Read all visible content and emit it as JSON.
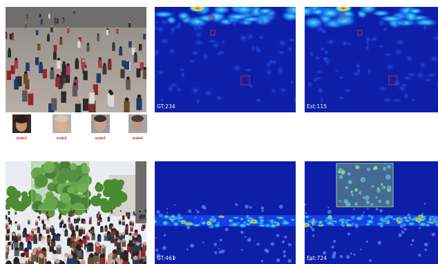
{
  "row1": {
    "gt_label": "GT:234",
    "est_label": "Est:115",
    "scales": [
      "scale1",
      "scale2",
      "scale3",
      "scale4"
    ]
  },
  "row2": {
    "gt_label": "GT:461",
    "est_label": "Est:724"
  },
  "colors": {
    "density_bg": "#0d1fa8",
    "box_red": "#e83030",
    "tree_box": "#7fb96a"
  }
}
